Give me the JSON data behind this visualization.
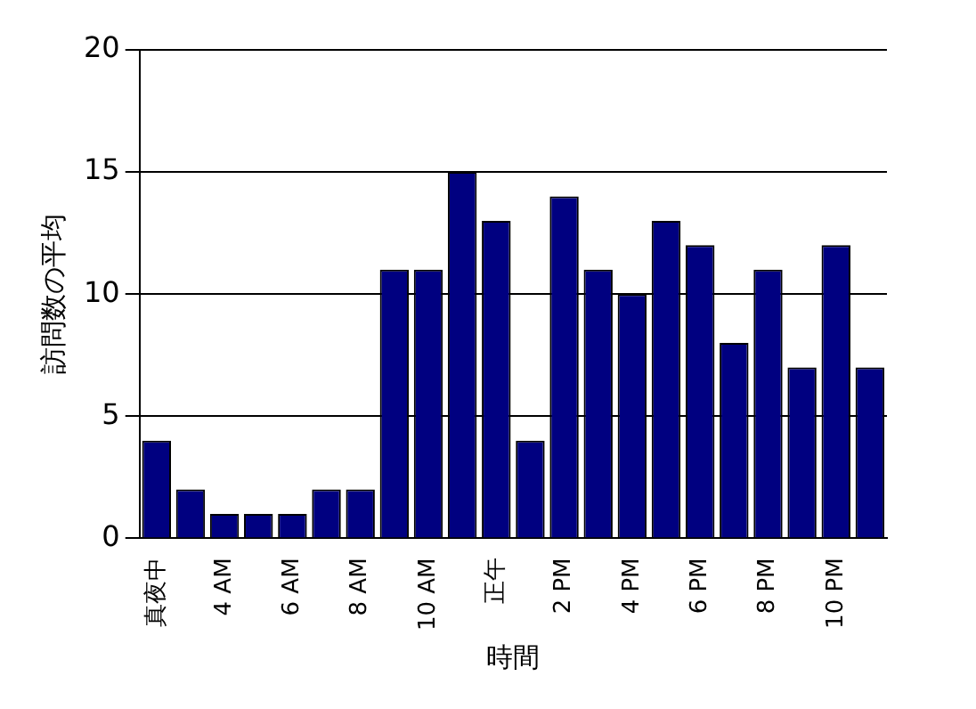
{
  "chart_data": {
    "type": "bar",
    "xlabel": "時間",
    "ylabel": "訪問数の平均",
    "categories": [
      "真夜中",
      null,
      "4 AM",
      null,
      "6 AM",
      null,
      "8 AM",
      null,
      "10 AM",
      null,
      "正午",
      null,
      "2 PM",
      null,
      "4 PM",
      null,
      "6 PM",
      null,
      "8 PM",
      null,
      "10 PM",
      null
    ],
    "values": [
      4,
      2,
      1,
      1,
      1,
      2,
      2,
      11,
      11,
      15,
      13,
      4,
      14,
      11,
      10,
      13,
      12,
      8,
      11,
      7,
      12,
      7
    ],
    "color": "#000080",
    "ylim": [
      0,
      20
    ],
    "yticks": [
      0,
      5,
      10,
      15,
      20
    ],
    "grid": "y",
    "legend": false
  }
}
